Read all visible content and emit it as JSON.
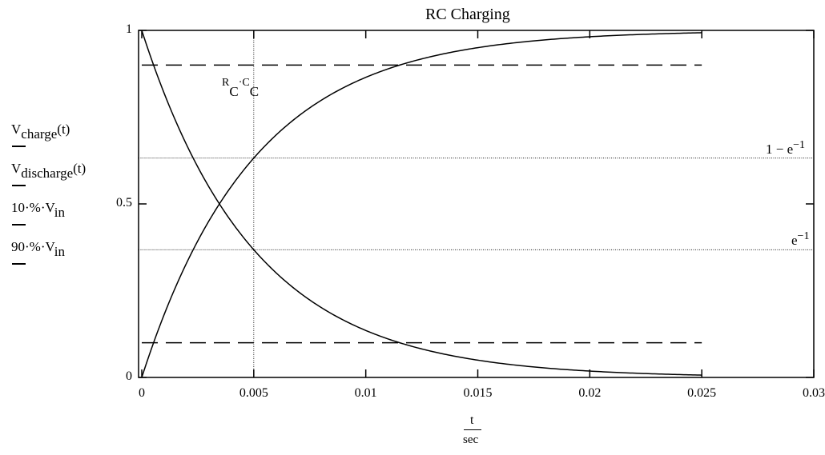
{
  "chart_data": {
    "type": "line",
    "title": "RC Charging",
    "xlabel": {
      "num": "t",
      "den": "sec"
    },
    "xlim": [
      0,
      0.03
    ],
    "ylim": [
      0,
      1
    ],
    "x_ticks": [
      {
        "value": 0,
        "label": "0"
      },
      {
        "value": 0.005,
        "label": "0.005"
      },
      {
        "value": 0.01,
        "label": "0.01"
      },
      {
        "value": 0.015,
        "label": "0.015"
      },
      {
        "value": 0.02,
        "label": "0.02"
      },
      {
        "value": 0.025,
        "label": "0.025"
      },
      {
        "value": 0.03,
        "label": "0.03"
      }
    ],
    "y_ticks": [
      {
        "value": 0,
        "label": "0"
      },
      {
        "value": 0.5,
        "label": "0.5"
      },
      {
        "value": 1,
        "label": "1"
      }
    ],
    "tau": 0.005,
    "grid": false,
    "series": [
      {
        "name": "V charge(t)",
        "style": "solid",
        "t": [
          0,
          0.001,
          0.002,
          0.003,
          0.004,
          0.005,
          0.0075,
          0.01,
          0.0125,
          0.015,
          0.0175,
          0.02,
          0.0225,
          0.025
        ],
        "values": [
          0,
          0.181,
          0.33,
          0.451,
          0.551,
          0.632,
          0.777,
          0.865,
          0.918,
          0.95,
          0.97,
          0.982,
          0.989,
          0.993
        ]
      },
      {
        "name": "V discharge(t)",
        "style": "solid",
        "t": [
          0,
          0.001,
          0.002,
          0.003,
          0.004,
          0.005,
          0.0075,
          0.01,
          0.0125,
          0.015,
          0.0175,
          0.02,
          0.0225,
          0.025
        ],
        "values": [
          1,
          0.819,
          0.67,
          0.549,
          0.449,
          0.368,
          0.223,
          0.135,
          0.082,
          0.05,
          0.03,
          0.018,
          0.011,
          0.007
        ]
      },
      {
        "name": "10·%·V in",
        "style": "dashed",
        "t": [
          0,
          0.025
        ],
        "values": [
          0.1,
          0.1
        ]
      },
      {
        "name": "90·%·V in",
        "style": "dashed",
        "t": [
          0,
          0.025
        ],
        "values": [
          0.9,
          0.9
        ]
      }
    ],
    "markers": [
      {
        "axis": "y",
        "value": 0.632,
        "label": "1 − e",
        "sup": "−1",
        "style": "dotted"
      },
      {
        "axis": "y",
        "value": 0.368,
        "label": "e",
        "sup": "−1",
        "style": "dotted"
      },
      {
        "axis": "x",
        "value": 0.005,
        "style": "dotted"
      }
    ],
    "rc_marker": {
      "r": "R",
      "c1": "C",
      "c2": "C"
    },
    "legend": [
      {
        "main": "V",
        "sub": "charge",
        "tail": "(t)"
      },
      {
        "main": "V",
        "sub": "discharge",
        "tail": "(t)"
      },
      {
        "main": "10·%·V",
        "sub": "in",
        "tail": ""
      },
      {
        "main": "90·%·V",
        "sub": "in",
        "tail": ""
      }
    ]
  }
}
